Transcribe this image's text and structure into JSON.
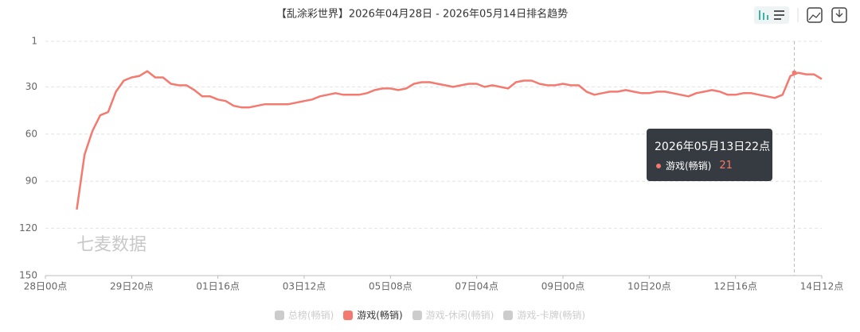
{
  "chart_data": {
    "type": "line",
    "title": "【乱涂彩世界】2026年04月28日 - 2026年05月14日排名趋势",
    "watermark": "七麦数据",
    "categories": [
      "28日00点",
      null,
      null,
      null,
      null,
      null,
      null,
      null,
      null,
      null,
      null,
      "29日20点",
      null,
      null,
      null,
      null,
      null,
      null,
      null,
      null,
      null,
      null,
      "01日16点",
      null,
      null,
      null,
      null,
      null,
      null,
      null,
      null,
      null,
      null,
      "03日12点",
      null,
      null,
      null,
      null,
      null,
      null,
      null,
      null,
      null,
      null,
      "05日08点",
      null,
      null,
      null,
      null,
      null,
      null,
      null,
      null,
      null,
      null,
      "07日04点",
      null,
      null,
      null,
      null,
      null,
      null,
      null,
      null,
      null,
      null,
      "09日00点",
      null,
      null,
      null,
      null,
      null,
      null,
      null,
      null,
      null,
      null,
      "10日20点",
      null,
      null,
      null,
      null,
      null,
      null,
      null,
      null,
      null,
      null,
      "12日16点",
      null,
      null,
      null,
      null,
      null,
      null,
      null,
      null,
      null,
      null,
      "14日12点"
    ],
    "series": [
      {
        "name": "游戏(畅销)",
        "color": "#f4796e",
        "values": [
          null,
          null,
          null,
          null,
          108,
          73,
          58,
          48,
          46,
          33,
          26,
          24,
          23,
          20,
          24,
          24,
          28,
          29,
          29,
          32,
          36,
          36,
          38,
          39,
          42,
          43,
          43,
          42,
          41,
          41,
          41,
          41,
          40,
          39,
          38,
          36,
          35,
          34,
          35,
          35,
          35,
          34,
          32,
          31,
          31,
          32,
          31,
          28,
          27,
          27,
          28,
          29,
          30,
          29,
          28,
          28,
          30,
          29,
          30,
          31,
          27,
          26,
          26,
          28,
          29,
          29,
          28,
          29,
          29,
          33,
          35,
          34,
          33,
          33,
          32,
          33,
          34,
          34,
          33,
          33,
          34,
          35,
          36,
          34,
          33,
          32,
          33,
          35,
          35,
          34,
          34,
          35,
          36,
          37,
          35,
          23,
          21,
          22,
          22,
          25
        ]
      }
    ],
    "hidden_series": [
      {
        "name": "总榜(畅销)",
        "color": "#cccccc"
      },
      {
        "name": "游戏-休闲(畅销)",
        "color": "#cccccc"
      },
      {
        "name": "游戏-卡牌(畅销)",
        "color": "#cccccc"
      }
    ],
    "ylim": [
      1,
      150
    ],
    "yticks": [
      1,
      30,
      60,
      90,
      120,
      150
    ],
    "y_inverted": true,
    "grid": true,
    "tooltip": {
      "title": "2026年05月13日22点",
      "series": "游戏(畅销)",
      "value": 21
    }
  }
}
